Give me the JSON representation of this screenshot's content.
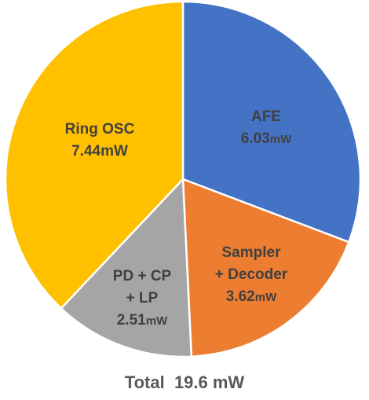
{
  "chart_data": {
    "type": "pie",
    "title": "",
    "slices": [
      {
        "name": "AFE",
        "name_lines": [
          "AFE"
        ],
        "value": 6.03,
        "num": "6.03",
        "unit": "mW",
        "color": "#4472C4",
        "label_color": "#404040"
      },
      {
        "name": "Sampler + Decoder",
        "name_lines": [
          "Sampler",
          "+ Decoder"
        ],
        "value": 3.62,
        "num": "3.62",
        "unit": "mW",
        "color": "#ED7D31",
        "label_color": "#404040"
      },
      {
        "name": "PD + CP + LP",
        "name_lines": [
          "PD + CP",
          "+ LP"
        ],
        "value": 2.51,
        "num": "2.51",
        "unit": "mW",
        "color": "#A5A5A5",
        "label_color": "#404040"
      },
      {
        "name": "Ring OSC",
        "name_lines": [
          "Ring OSC"
        ],
        "value": 7.44,
        "num": "7.44mW",
        "unit": "",
        "color": "#FFC000",
        "label_color": "#404040"
      }
    ],
    "total_label": "Total  19.6 mW"
  }
}
